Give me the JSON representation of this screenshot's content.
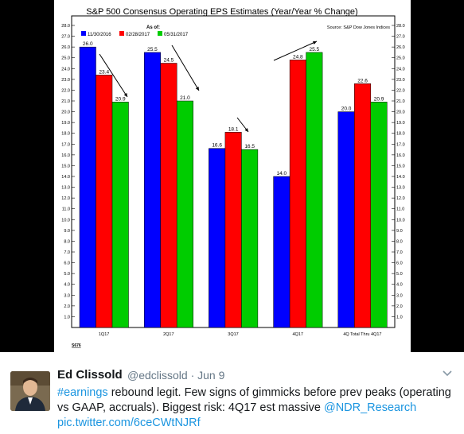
{
  "chart_data": {
    "type": "bar",
    "title": "S&P 500 Consensus Operating EPS Estimates (Year/Year % Change)",
    "legend_title": "As of:",
    "source": "Source:  S&P Dow Jones Indices",
    "categories": [
      "1Q17",
      "2Q17",
      "3Q17",
      "4Q17",
      "4Q Total Thru 4Q17"
    ],
    "series": [
      {
        "name": "11/30/2016",
        "color": "#0000ff",
        "values": [
          26.0,
          25.5,
          16.6,
          14.0,
          20.0
        ]
      },
      {
        "name": "02/28/2017",
        "color": "#ff0000",
        "values": [
          23.4,
          24.5,
          18.1,
          24.8,
          22.6
        ]
      },
      {
        "name": "05/31/2017",
        "color": "#00cc00",
        "values": [
          20.9,
          21.0,
          16.5,
          25.5,
          20.9
        ]
      }
    ],
    "ylim": [
      0,
      28
    ],
    "ytick_step": 1,
    "y_axis_both_sides": true,
    "grid": false,
    "footnote": "S676",
    "legend_position": "top-left"
  },
  "tweet": {
    "display_name": "Ed Clissold",
    "handle": "@edclissold",
    "separator": "·",
    "date": "Jun 9",
    "hashtag": "#earnings",
    "text_1": " rebound legit. Few signs of gimmicks before prev peaks (operating vs GAAP, accruals). Biggest risk: 4Q17 est massive ",
    "mention": "@NDR_Research",
    "media_link": "pic.twitter.com/6ceCWtNJRf"
  }
}
